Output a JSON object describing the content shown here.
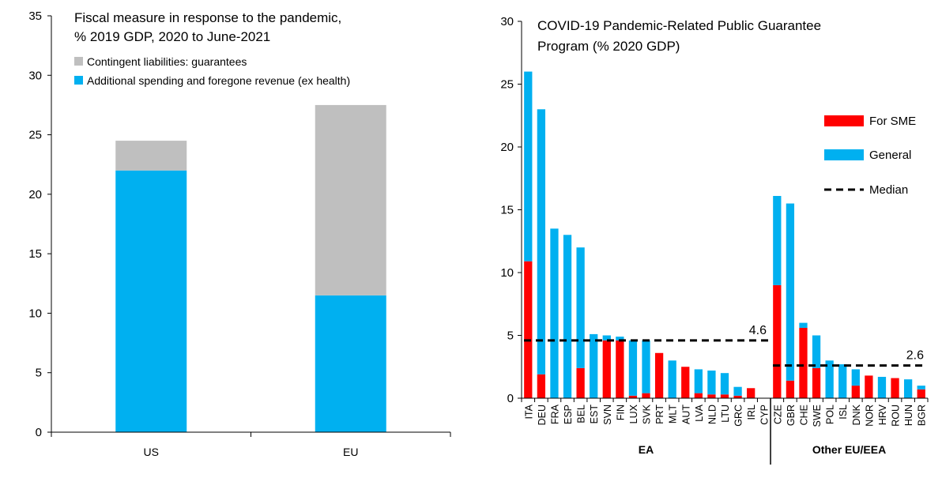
{
  "chart_data": [
    {
      "type": "bar",
      "stacked": true,
      "title_lines": [
        "Fiscal measure in response to the pandemic,",
        "% 2019 GDP, 2020 to June-2021"
      ],
      "categories": [
        "US",
        "EU"
      ],
      "series": [
        {
          "name": "Additional spending and foregone revenue (ex health)",
          "color": "#00b0f0",
          "values": [
            22,
            11.5
          ]
        },
        {
          "name": "Contingent liabilities: guarantees",
          "color": "#bfbfbf",
          "values": [
            2.5,
            16
          ]
        }
      ],
      "legend_order": [
        "Contingent liabilities: guarantees",
        "Additional spending and foregone revenue (ex health)"
      ],
      "legend_position": "top-left",
      "ylim": [
        0,
        35
      ],
      "yticks": [
        "0",
        "5",
        "10",
        "15",
        "20",
        "25",
        "30",
        "35"
      ],
      "grid": false
    },
    {
      "type": "bar",
      "stacked": true,
      "title_lines": [
        "COVID-19 Pandemic-Related Public Guarantee",
        "Program (% 2020 GDP)"
      ],
      "categories": [
        "ITA",
        "DEU",
        "FRA",
        "ESP",
        "BEL",
        "EST",
        "SVN",
        "FIN",
        "LUX",
        "SVK",
        "PRT",
        "MLT",
        "AUT",
        "LVA",
        "NLD",
        "LTU",
        "GRC",
        "IRL",
        "CYP",
        "CZE",
        "GBR",
        "CHE",
        "SWE",
        "POL",
        "ISL",
        "DNK",
        "NOR",
        "HRV",
        "ROU",
        "HUN",
        "BGR"
      ],
      "series": [
        {
          "name": "For SME",
          "color": "#ff0000",
          "values": [
            10.9,
            1.9,
            0,
            0,
            2.4,
            0,
            4.6,
            4.6,
            0.2,
            0.4,
            3.6,
            0,
            2.5,
            0.4,
            0.3,
            0.3,
            0.2,
            0.8,
            0,
            9.0,
            1.4,
            5.6,
            2.4,
            0,
            0,
            1.0,
            1.8,
            0,
            1.6,
            0,
            0.7
          ]
        },
        {
          "name": "General",
          "color": "#00b0f0",
          "values": [
            15.1,
            21.1,
            13.5,
            13.0,
            9.6,
            5.1,
            0.4,
            0.3,
            4.4,
            4.2,
            0,
            3.0,
            0,
            1.9,
            1.9,
            1.7,
            0.7,
            0,
            0,
            7.1,
            14.1,
            0.4,
            2.6,
            3.0,
            2.7,
            1.3,
            0,
            1.7,
            0,
            1.5,
            0.3
          ]
        }
      ],
      "groups": [
        {
          "label": "EA",
          "start": 0,
          "end": 18,
          "median": 4.6,
          "median_label": "4.6"
        },
        {
          "label": "Other EU/EEA",
          "start": 19,
          "end": 30,
          "median": 2.6,
          "median_label": "2.6"
        }
      ],
      "legend": [
        {
          "label": "For SME",
          "kind": "box",
          "color": "#ff0000"
        },
        {
          "label": "General",
          "kind": "box",
          "color": "#00b0f0"
        },
        {
          "label": "Median",
          "kind": "dash",
          "color": "#000000"
        }
      ],
      "legend_position": "right",
      "ylim": [
        0,
        30
      ],
      "yticks": [
        "0",
        "5",
        "10",
        "15",
        "20",
        "25",
        "30"
      ],
      "grid": false
    }
  ]
}
